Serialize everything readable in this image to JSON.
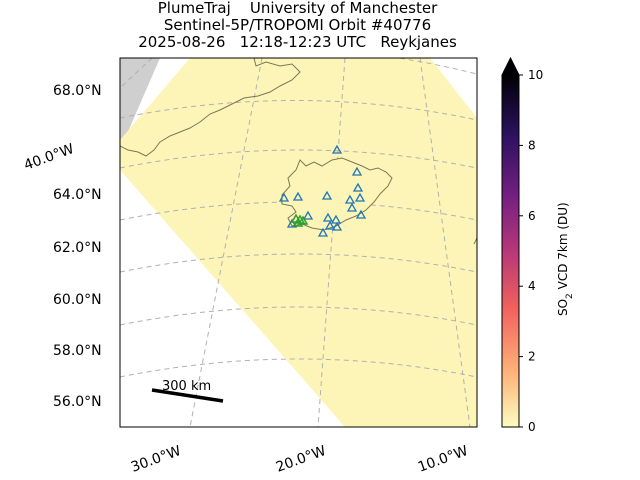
{
  "header": {
    "line1": "PlumeTraj    University of Manchester",
    "line2": "Sentinel-5P/TROPOMI Orbit #40776",
    "line3": "2025-08-26   12:18-12:23 UTC   Reykjanes"
  },
  "map": {
    "lat_labels": [
      "68.0°N",
      "66.0°N",
      "64.0°N",
      "62.0°N",
      "60.0°N",
      "58.0°N",
      "56.0°N"
    ],
    "lon_labels": [
      "40.0°W",
      "30.0°W",
      "20.0°W",
      "10.0°W"
    ],
    "scale_bar_label": "300 km",
    "colors": {
      "swath": "#fdf5b8",
      "no_data": "#cfcfcf",
      "coast": "#7b7755",
      "volcano_marker": "#1f77b4",
      "source_marker": "#2ca02c",
      "grid": "#b0b0b0"
    }
  },
  "colorbar": {
    "label_prefix": "SO",
    "label_sub": "2",
    "label_suffix": " VCD 7km (DU)",
    "ticks": [
      "0",
      "2",
      "4",
      "6",
      "8",
      "10"
    ],
    "min": 0,
    "max": 10,
    "extend": "max",
    "colormap": [
      "#fcfdbf",
      "#feb078",
      "#f1605d",
      "#b73779",
      "#721f81",
      "#2c115f",
      "#000004"
    ]
  }
}
